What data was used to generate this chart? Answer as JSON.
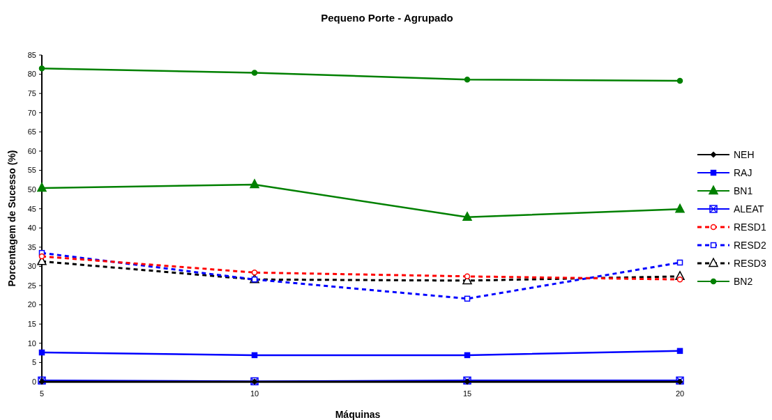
{
  "chart_data": {
    "type": "line",
    "title": "Pequeno Porte - Agrupado",
    "xlabel": "Máquinas",
    "ylabel": "Porcentagem de Sucesso (%)",
    "x": [
      5,
      10,
      15,
      20
    ],
    "xlim": [
      5,
      20
    ],
    "xticks": [
      5,
      10,
      15,
      20
    ],
    "ylim": [
      0,
      85
    ],
    "yticks": [
      0,
      5,
      10,
      15,
      20,
      25,
      30,
      35,
      40,
      45,
      50,
      55,
      60,
      65,
      70,
      75,
      80,
      85
    ],
    "grid": false,
    "legend": "right",
    "series": [
      {
        "name": "NEH",
        "color": "#000000",
        "marker": "diamond",
        "line_style": "solid",
        "values": [
          0,
          0,
          0,
          0
        ]
      },
      {
        "name": "RAJ",
        "color": "#0000ff",
        "marker": "square",
        "line_style": "solid",
        "values": [
          7.6,
          6.9,
          6.9,
          8.0
        ]
      },
      {
        "name": "BN1",
        "color": "#008000",
        "marker": "triangle",
        "line_style": "solid",
        "values": [
          50.4,
          51.3,
          42.8,
          44.9
        ]
      },
      {
        "name": "ALEAT",
        "color": "#0000ff",
        "marker": "cross",
        "line_style": "solid",
        "values": [
          0.3,
          0.1,
          0.3,
          0.3
        ]
      },
      {
        "name": "RESD1",
        "color": "#ff0000",
        "marker": "circle",
        "line_style": "dashed",
        "values": [
          32.6,
          28.4,
          27.4,
          26.6
        ]
      },
      {
        "name": "RESD2",
        "color": "#0000ff",
        "marker": "square",
        "line_style": "dashed",
        "values": [
          33.5,
          26.6,
          21.6,
          31.0
        ]
      },
      {
        "name": "RESD3",
        "color": "#000000",
        "marker": "triangle",
        "line_style": "dashed",
        "values": [
          31.3,
          26.6,
          26.3,
          27.4
        ]
      },
      {
        "name": "BN2",
        "color": "#008000",
        "marker": "circle",
        "line_style": "solid",
        "values": [
          81.5,
          80.4,
          78.6,
          78.3
        ]
      }
    ]
  }
}
